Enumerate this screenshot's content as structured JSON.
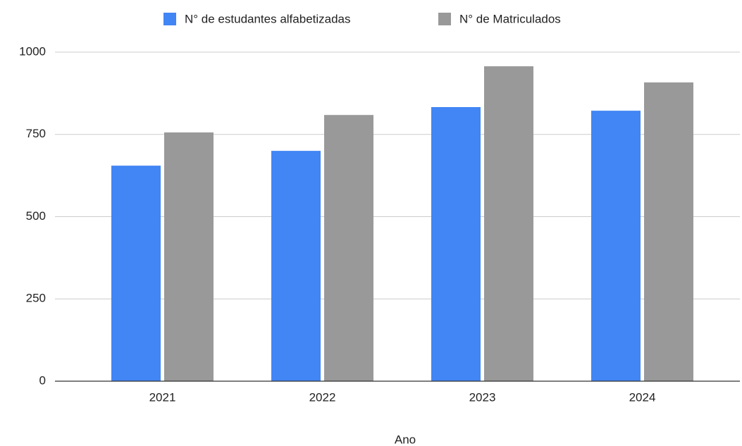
{
  "chart_data": {
    "type": "bar",
    "x_label": "Ano",
    "categories": [
      "2021",
      "2022",
      "2023",
      "2024"
    ],
    "series": [
      {
        "name": "N° de estudantes alfabetizadas",
        "color": "#4285f4",
        "values": [
          655,
          700,
          833,
          822
        ]
      },
      {
        "name": "N° de Matriculados",
        "color": "#999999",
        "values": [
          756,
          809,
          957,
          908
        ]
      }
    ],
    "ylim": [
      0,
      1000
    ],
    "yticks": [
      0,
      250,
      500,
      750,
      1000
    ],
    "grid": true,
    "legend": "top"
  }
}
